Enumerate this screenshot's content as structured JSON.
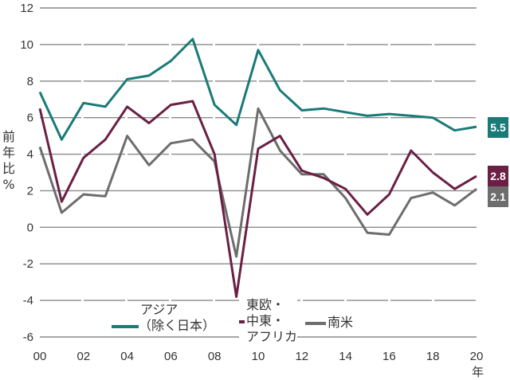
{
  "chart_data": {
    "type": "line",
    "title": "",
    "xlabel": "年",
    "ylabel": "前年比%",
    "ylim": [
      -6,
      12
    ],
    "yticks": [
      12,
      10,
      8,
      6,
      4,
      2,
      0,
      -2,
      -4,
      -6
    ],
    "ytick_labels": [
      "12",
      "10",
      "8",
      "6",
      "4",
      "2",
      "0",
      "-2",
      "-4",
      "-6"
    ],
    "xtick_labels": [
      "00",
      "02",
      "04",
      "06",
      "08",
      "10",
      "12",
      "14",
      "16",
      "18",
      "20"
    ],
    "x": [
      2000,
      2001,
      2002,
      2003,
      2004,
      2005,
      2006,
      2007,
      2008,
      2009,
      2010,
      2011,
      2012,
      2013,
      2014,
      2015,
      2016,
      2017,
      2018,
      2019,
      2020
    ],
    "grid": true,
    "series": [
      {
        "name": "アジア（除く日本）",
        "color": "#1a7a78",
        "values": [
          7.4,
          4.8,
          6.8,
          6.6,
          8.1,
          8.3,
          9.1,
          10.3,
          6.7,
          5.6,
          9.7,
          7.5,
          6.4,
          6.5,
          6.3,
          6.1,
          6.2,
          6.1,
          6.0,
          5.3,
          5.5
        ],
        "end_label": "5.5"
      },
      {
        "name": "東欧・中東・アフリカ",
        "color": "#6b1f45",
        "values": [
          6.5,
          1.4,
          3.8,
          4.8,
          6.6,
          5.7,
          6.7,
          6.9,
          4.0,
          -3.8,
          4.3,
          5.0,
          3.1,
          2.7,
          2.1,
          0.7,
          1.8,
          4.2,
          3.0,
          2.1,
          2.8
        ],
        "end_label": "2.8"
      },
      {
        "name": "南米",
        "color": "#6d6d6d",
        "values": [
          4.4,
          0.8,
          1.8,
          1.7,
          5.0,
          3.4,
          4.6,
          4.8,
          3.6,
          -1.6,
          6.5,
          4.2,
          2.9,
          2.9,
          1.6,
          -0.3,
          -0.4,
          1.6,
          1.9,
          1.2,
          2.1
        ],
        "end_label": "2.1"
      }
    ],
    "legend_position": "bottom-inside"
  },
  "labels": {
    "ylabel_chars": [
      "前",
      "年",
      "比",
      "%"
    ],
    "xunit": "年",
    "legend": {
      "asia_line1": "アジア",
      "asia_line2": "（除く日本）",
      "emea_line1": "東欧・",
      "emea_line2": "中東・",
      "emea_line3": "アフリカ",
      "latam": "南米"
    },
    "badges": {
      "asia": "5.5",
      "emea": "2.8",
      "latam": "2.1"
    }
  }
}
